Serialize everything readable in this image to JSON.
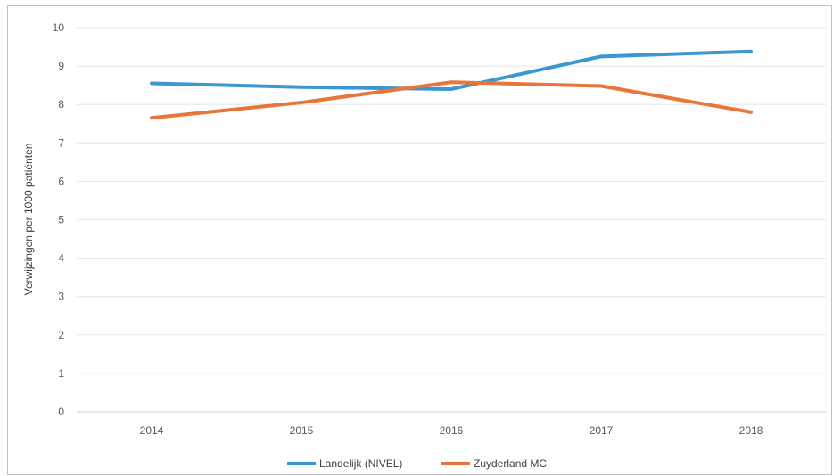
{
  "chart_data": {
    "type": "line",
    "title": "",
    "xlabel": "",
    "ylabel": "Verwijzingen per 1000 patiënten",
    "categories": [
      "2014",
      "2015",
      "2016",
      "2017",
      "2018"
    ],
    "ylim": [
      0,
      10
    ],
    "yticks": [
      "0",
      "1",
      "2",
      "3",
      "4",
      "5",
      "6",
      "7",
      "8",
      "9",
      "10"
    ],
    "grid": true,
    "legend": "bottom",
    "series": [
      {
        "name": "Landelijk (NIVEL)",
        "color": "#3c96d2",
        "values": [
          8.55,
          8.45,
          8.4,
          9.25,
          9.38
        ]
      },
      {
        "name": "Zuyderland MC",
        "color": "#e8763a",
        "values": [
          7.65,
          8.05,
          8.58,
          8.48,
          7.8
        ]
      }
    ]
  }
}
